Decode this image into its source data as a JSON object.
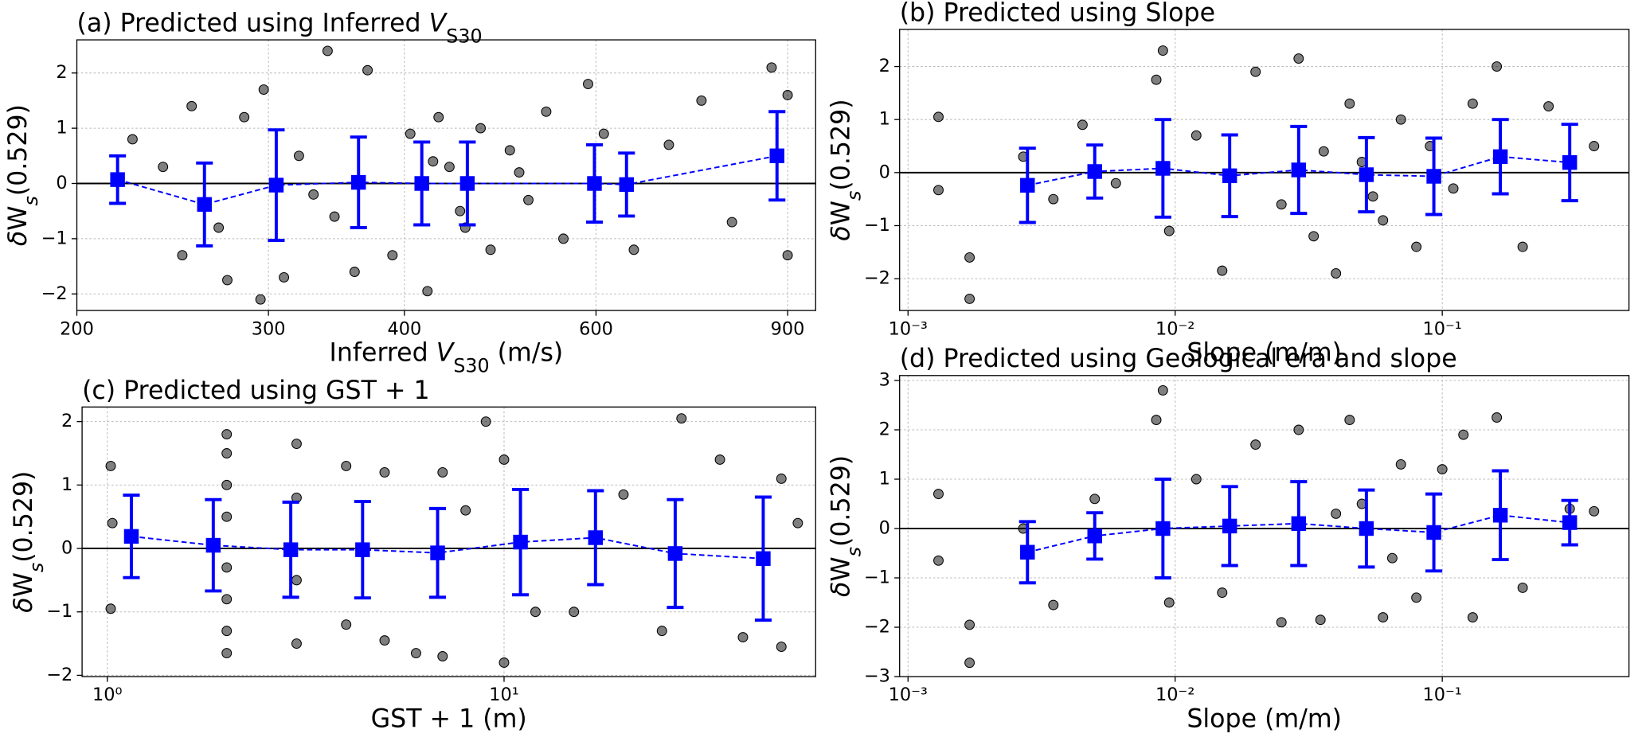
{
  "chart_data": [
    {
      "type": "scatter",
      "title": [
        {
          "text": "(a) Predicted using Inferred "
        },
        {
          "text": "V",
          "italic": true
        },
        {
          "text": "S30",
          "sub": true
        }
      ],
      "xlabel": [
        {
          "text": "Inferred "
        },
        {
          "text": "V",
          "italic": true
        },
        {
          "text": "S30",
          "sub": true
        },
        {
          "text": " (m/s)"
        }
      ],
      "ylabel": [
        {
          "text": "δ",
          "italic": true
        },
        {
          "text": "W"
        },
        {
          "text": "s",
          "sub": true,
          "italic": true
        },
        {
          "text": "(0.529)"
        }
      ],
      "xscale": "log",
      "xlim": [
        200,
        955
      ],
      "ylim": [
        -2.3,
        2.6
      ],
      "xticks": [
        200,
        300,
        400,
        600,
        900
      ],
      "yticks": [
        {
          "value": -2,
          "label": "−2"
        },
        {
          "value": -1,
          "label": "−1"
        },
        0,
        1,
        2
      ],
      "grid": true,
      "hline": 0,
      "series": [
        {
          "color": "#000000",
          "alpha": 0.5,
          "marker": "circle",
          "x": [
            225,
            240,
            250,
            255,
            270,
            275,
            285,
            295,
            297,
            310,
            320,
            340,
            345,
            360,
            370,
            390,
            405,
            420,
            430,
            440,
            450,
            470,
            480,
            500,
            520,
            540,
            560,
            590,
            610,
            650,
            700,
            750,
            800,
            870,
            900,
            900,
            330,
            425,
            455,
            510
          ],
          "values": [
            0.8,
            0.3,
            -1.3,
            1.4,
            -0.8,
            -1.75,
            1.2,
            -2.1,
            1.7,
            -1.7,
            0.5,
            2.4,
            -0.6,
            -1.6,
            2.05,
            -1.3,
            0.9,
            -1.95,
            1.2,
            0.3,
            -0.5,
            1.0,
            -1.2,
            0.6,
            -0.3,
            1.3,
            -1.0,
            1.8,
            0.9,
            -1.2,
            0.7,
            1.5,
            -0.7,
            2.1,
            1.6,
            -1.3,
            -0.2,
            0.4,
            -0.8,
            0.2
          ]
        },
        {
          "color": "#0000ff",
          "marker": "square",
          "line": "dashed",
          "x": [
            218,
            262,
            305,
            363,
            415,
            457,
            598,
            640,
            880
          ],
          "values": [
            0.07,
            -0.38,
            -0.03,
            0.02,
            0.0,
            0.0,
            0.0,
            -0.02,
            0.5
          ],
          "errors": [
            0.43,
            0.75,
            1.0,
            0.82,
            0.75,
            0.75,
            0.7,
            0.57,
            0.8
          ]
        }
      ]
    },
    {
      "type": "scatter",
      "title": [
        {
          "text": "(b) Predicted using Slope"
        }
      ],
      "xlabel": [
        {
          "text": "Slope (m/m)"
        }
      ],
      "ylabel": [
        {
          "text": "δ",
          "italic": true
        },
        {
          "text": "W"
        },
        {
          "text": "s",
          "sub": true,
          "italic": true
        },
        {
          "text": "(0.529)"
        }
      ],
      "xscale": "log",
      "xlim": [
        0.00093,
        0.5
      ],
      "ylim": [
        -2.6,
        2.7
      ],
      "xticks": [
        {
          "value": 0.001,
          "label": "10⁻³"
        },
        {
          "value": 0.01,
          "label": "10⁻²"
        },
        {
          "value": 0.1,
          "label": "10⁻¹"
        }
      ],
      "yticks": [
        {
          "value": -2,
          "label": "−2"
        },
        {
          "value": -1,
          "label": "−1"
        },
        0,
        1,
        2
      ],
      "grid": true,
      "hline": 0,
      "series": [
        {
          "color": "#000000",
          "alpha": 0.5,
          "marker": "circle",
          "x": [
            0.0013,
            0.0013,
            0.0017,
            0.0017,
            0.0027,
            0.0035,
            0.0045,
            0.006,
            0.0085,
            0.009,
            0.0095,
            0.012,
            0.015,
            0.02,
            0.025,
            0.029,
            0.033,
            0.04,
            0.045,
            0.05,
            0.06,
            0.07,
            0.08,
            0.09,
            0.11,
            0.13,
            0.16,
            0.2,
            0.25,
            0.37,
            0.036,
            0.055
          ],
          "values": [
            1.05,
            -0.33,
            -1.6,
            -2.38,
            0.3,
            -0.5,
            0.9,
            -0.2,
            1.75,
            2.3,
            -1.1,
            0.7,
            -1.85,
            1.9,
            -0.6,
            2.15,
            -1.2,
            -1.9,
            1.3,
            0.2,
            -0.9,
            1.0,
            -1.4,
            0.5,
            -0.3,
            1.3,
            2.0,
            -1.4,
            1.25,
            0.5,
            0.4,
            -0.45
          ]
        },
        {
          "color": "#0000ff",
          "marker": "square",
          "line": "dashed",
          "x": [
            0.0028,
            0.005,
            0.009,
            0.016,
            0.029,
            0.052,
            0.093,
            0.165,
            0.3
          ],
          "values": [
            -0.24,
            0.02,
            0.08,
            -0.06,
            0.05,
            -0.04,
            -0.07,
            0.3,
            0.19
          ],
          "errors": [
            0.7,
            0.5,
            0.92,
            0.77,
            0.82,
            0.7,
            0.72,
            0.7,
            0.72
          ]
        }
      ]
    },
    {
      "type": "scatter",
      "title": [
        {
          "text": "(c) Predicted using GST + 1"
        }
      ],
      "xlabel": [
        {
          "text": "GST + 1 (m)"
        }
      ],
      "ylabel": [
        {
          "text": "δ",
          "italic": true
        },
        {
          "text": "W"
        },
        {
          "text": "s",
          "sub": true,
          "italic": true
        },
        {
          "text": "(0.529)"
        }
      ],
      "xscale": "log",
      "xlim": [
        0.864,
        61
      ],
      "ylim": [
        -2.02,
        2.23
      ],
      "xticks": [
        {
          "value": 1,
          "label": "10⁰"
        },
        {
          "value": 10,
          "label": "10¹"
        }
      ],
      "yticks": [
        {
          "value": -2,
          "label": "−2"
        },
        {
          "value": -1,
          "label": "−1"
        },
        0,
        1,
        2
      ],
      "grid": true,
      "hline": 0,
      "series": [
        {
          "color": "#000000",
          "alpha": 0.5,
          "marker": "circle",
          "x": [
            1.02,
            1.02,
            1.03,
            2,
            2,
            2,
            2,
            2,
            2,
            2,
            2,
            3,
            3,
            3,
            4,
            4,
            5,
            5,
            6,
            7,
            7,
            9,
            10,
            10,
            12,
            15,
            20,
            25,
            28,
            35,
            40,
            50,
            50,
            55,
            8,
            3
          ],
          "values": [
            1.3,
            -0.95,
            0.4,
            1.8,
            1.5,
            1.0,
            0.5,
            -0.3,
            -0.8,
            -1.3,
            -1.65,
            1.65,
            -1.5,
            0.8,
            1.3,
            -1.2,
            1.2,
            -1.45,
            -1.65,
            -1.7,
            1.2,
            2.0,
            -1.8,
            1.4,
            -1.0,
            -1.0,
            0.85,
            -1.3,
            2.05,
            1.4,
            -1.4,
            1.1,
            -1.55,
            0.4,
            0.6,
            -0.5
          ]
        },
        {
          "color": "#0000ff",
          "marker": "square",
          "line": "dashed",
          "x": [
            1.15,
            1.85,
            2.9,
            4.4,
            6.8,
            11,
            17,
            27,
            45
          ],
          "values": [
            0.19,
            0.05,
            -0.02,
            -0.02,
            -0.07,
            0.1,
            0.17,
            -0.08,
            -0.16
          ],
          "errors": [
            0.65,
            0.72,
            0.75,
            0.76,
            0.7,
            0.83,
            0.74,
            0.85,
            0.97
          ]
        }
      ]
    },
    {
      "type": "scatter",
      "title": [
        {
          "text": "(d) Predicted using Geological era and slope"
        }
      ],
      "xlabel": [
        {
          "text": "Slope (m/m)"
        }
      ],
      "ylabel": [
        {
          "text": "δ",
          "italic": true
        },
        {
          "text": "W"
        },
        {
          "text": "s",
          "sub": true,
          "italic": true
        },
        {
          "text": "(0.529)"
        }
      ],
      "xscale": "log",
      "xlim": [
        0.00093,
        0.5
      ],
      "ylim": [
        -3,
        3.1
      ],
      "xticks": [
        {
          "value": 0.001,
          "label": "10⁻³"
        },
        {
          "value": 0.01,
          "label": "10⁻²"
        },
        {
          "value": 0.1,
          "label": "10⁻¹"
        }
      ],
      "yticks": [
        {
          "value": -3,
          "label": "−3"
        },
        {
          "value": -2,
          "label": "−2"
        },
        {
          "value": -1,
          "label": "−1"
        },
        0,
        1,
        2,
        3
      ],
      "grid": true,
      "hline": 0,
      "series": [
        {
          "color": "#000000",
          "alpha": 0.5,
          "marker": "circle",
          "x": [
            0.0013,
            0.0013,
            0.0017,
            0.0017,
            0.0027,
            0.0035,
            0.005,
            0.0085,
            0.009,
            0.0095,
            0.012,
            0.015,
            0.02,
            0.025,
            0.029,
            0.035,
            0.045,
            0.05,
            0.06,
            0.07,
            0.08,
            0.1,
            0.12,
            0.13,
            0.16,
            0.2,
            0.3,
            0.37,
            0.04,
            0.065
          ],
          "values": [
            0.7,
            -0.65,
            -1.95,
            -2.72,
            0.0,
            -1.55,
            0.6,
            2.2,
            2.8,
            -1.5,
            1.0,
            -1.3,
            1.7,
            -1.9,
            2.0,
            -1.85,
            2.2,
            0.5,
            -1.8,
            1.3,
            -1.4,
            1.2,
            1.9,
            -1.8,
            2.25,
            -1.2,
            0.4,
            0.35,
            0.3,
            -0.6
          ]
        },
        {
          "color": "#0000ff",
          "marker": "square",
          "line": "dashed",
          "x": [
            0.0028,
            0.005,
            0.009,
            0.016,
            0.029,
            0.052,
            0.093,
            0.165,
            0.3
          ],
          "values": [
            -0.48,
            -0.15,
            0.0,
            0.05,
            0.1,
            0.0,
            -0.08,
            0.27,
            0.12
          ],
          "errors": [
            0.62,
            0.47,
            1.0,
            0.8,
            0.85,
            0.78,
            0.78,
            0.9,
            0.45
          ]
        }
      ]
    }
  ]
}
